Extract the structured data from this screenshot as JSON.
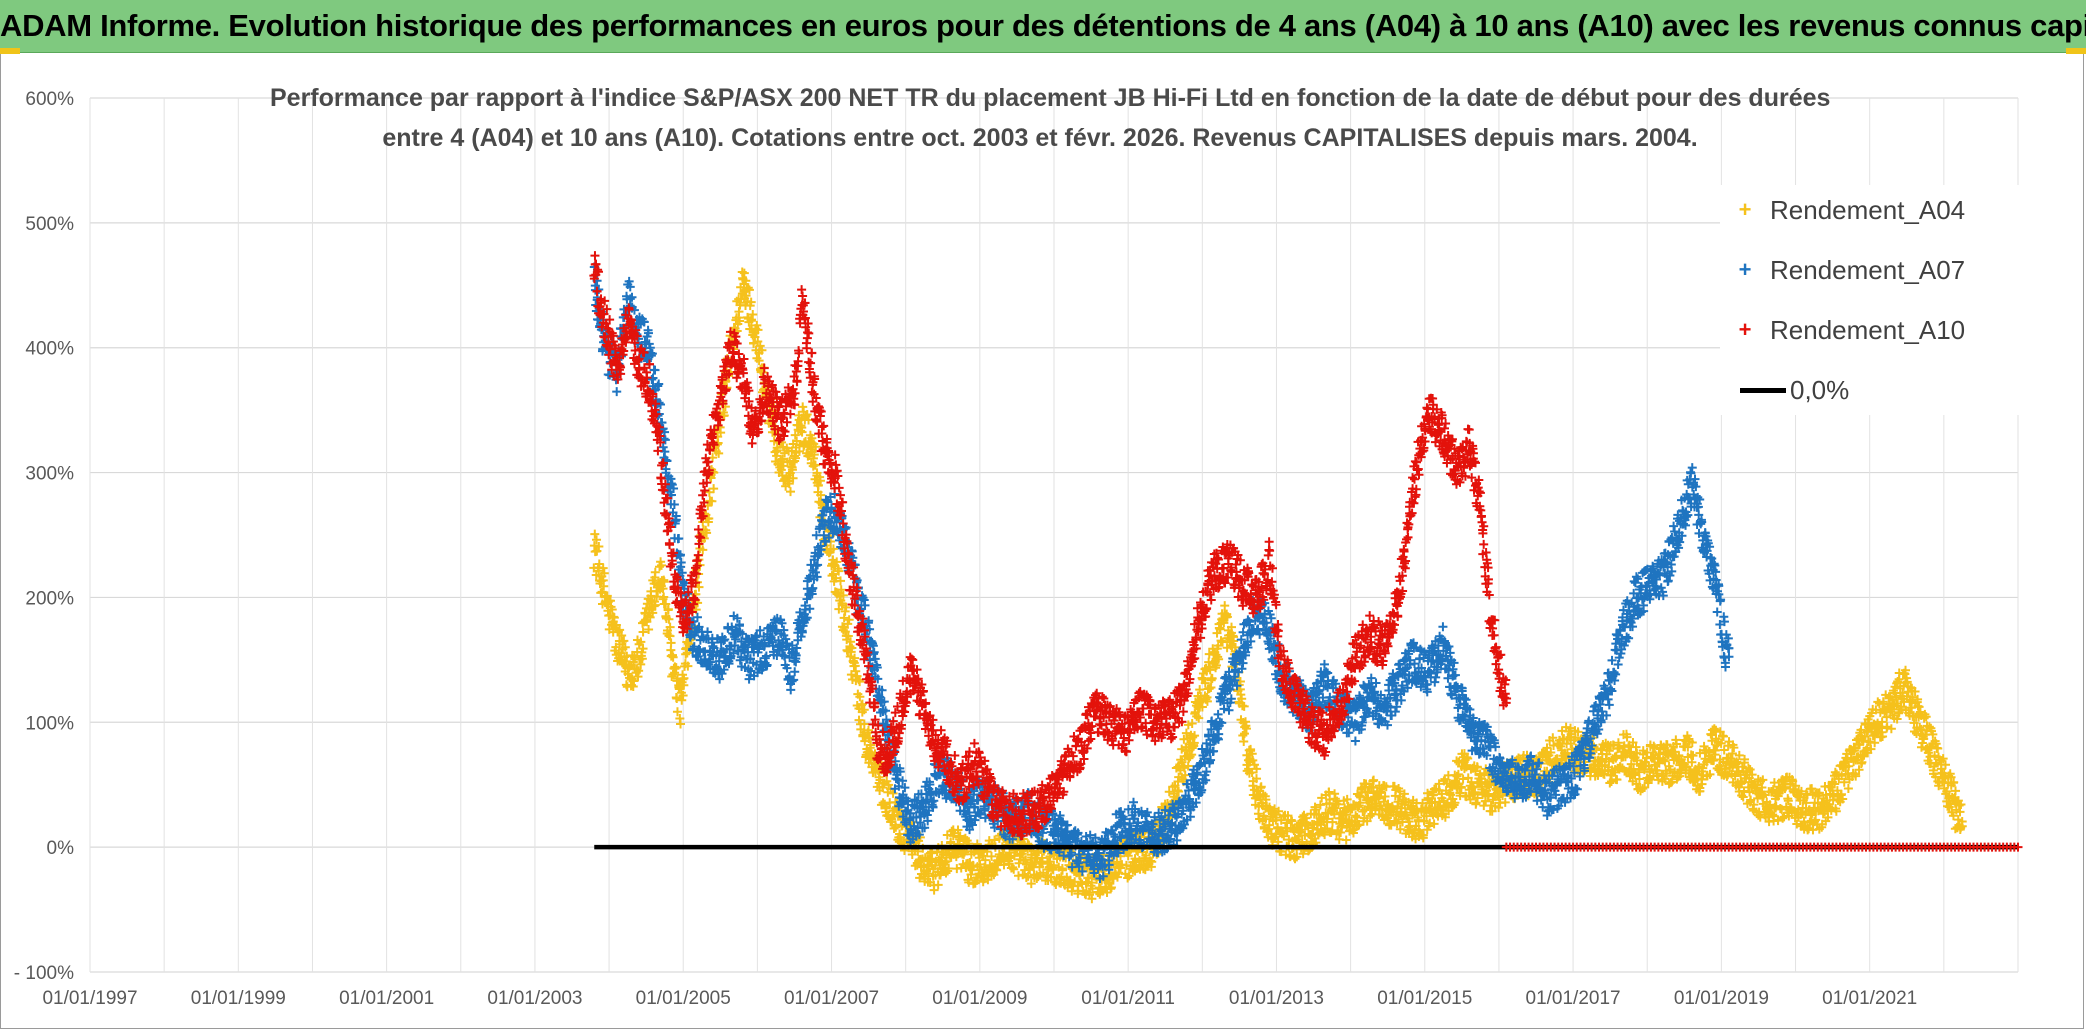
{
  "page": {
    "banner": "ADAM Informe. Evolution historique des performances en euros pour des détentions de 4 ans (A04) à 10 ans (A10) avec les revenus connus capitalisés"
  },
  "chart_data": {
    "type": "scatter",
    "title_lines": [
      "Performance par rapport à l'indice S&P/ASX 200 NET TR  du placement JB Hi-Fi Ltd  en fonction de la date de début pour des durées",
      "entre 4 (A04) et 10 ans (A10). Cotations entre oct. 2003 et févr. 2026. Revenus CAPITALISES depuis mars. 2004."
    ],
    "xlabel": "",
    "ylabel": "",
    "x_ticks": [
      "01/01/1997",
      "01/01/1999",
      "01/01/2001",
      "01/01/2003",
      "01/01/2005",
      "01/01/2007",
      "01/01/2009",
      "01/01/2011",
      "01/01/2013",
      "01/01/2015",
      "01/01/2017",
      "01/01/2019",
      "01/01/2021"
    ],
    "y_ticks": [
      "- 100%",
      "0%",
      "100%",
      "200%",
      "300%",
      "400%",
      "500%",
      "600%"
    ],
    "xlim": [
      1997.0,
      2023.0
    ],
    "ylim": [
      -100,
      600
    ],
    "grid": true,
    "legend_position": "top-right",
    "series": [
      {
        "name": "Rendement_A04",
        "color": "#f5c11c",
        "marker": "+",
        "x_start": 2003.8,
        "x_end": 2022.25,
        "points": [
          [
            2003.8,
            240
          ],
          [
            2003.95,
            200
          ],
          [
            2004.1,
            165
          ],
          [
            2004.25,
            140
          ],
          [
            2004.4,
            150
          ],
          [
            2004.55,
            190
          ],
          [
            2004.7,
            220
          ],
          [
            2004.85,
            150
          ],
          [
            2004.95,
            110
          ],
          [
            2005.1,
            170
          ],
          [
            2005.3,
            260
          ],
          [
            2005.5,
            340
          ],
          [
            2005.65,
            400
          ],
          [
            2005.8,
            450
          ],
          [
            2005.95,
            420
          ],
          [
            2006.1,
            370
          ],
          [
            2006.3,
            310
          ],
          [
            2006.45,
            300
          ],
          [
            2006.6,
            340
          ],
          [
            2006.75,
            320
          ],
          [
            2006.9,
            260
          ],
          [
            2007.05,
            220
          ],
          [
            2007.25,
            160
          ],
          [
            2007.45,
            90
          ],
          [
            2007.6,
            60
          ],
          [
            2007.75,
            40
          ],
          [
            2007.9,
            20
          ],
          [
            2008.05,
            10
          ],
          [
            2008.2,
            -10
          ],
          [
            2008.35,
            -20
          ],
          [
            2008.5,
            -10
          ],
          [
            2008.7,
            0
          ],
          [
            2008.9,
            -15
          ],
          [
            2009.1,
            -10
          ],
          [
            2009.3,
            0
          ],
          [
            2009.5,
            -5
          ],
          [
            2009.7,
            -15
          ],
          [
            2009.9,
            -10
          ],
          [
            2010.1,
            -15
          ],
          [
            2010.3,
            -20
          ],
          [
            2010.5,
            -25
          ],
          [
            2010.7,
            -20
          ],
          [
            2010.9,
            -10
          ],
          [
            2011.1,
            -5
          ],
          [
            2011.3,
            0
          ],
          [
            2011.5,
            20
          ],
          [
            2011.7,
            60
          ],
          [
            2011.9,
            100
          ],
          [
            2012.1,
            140
          ],
          [
            2012.3,
            180
          ],
          [
            2012.45,
            150
          ],
          [
            2012.6,
            80
          ],
          [
            2012.75,
            40
          ],
          [
            2012.9,
            20
          ],
          [
            2013.1,
            10
          ],
          [
            2013.3,
            5
          ],
          [
            2013.5,
            15
          ],
          [
            2013.7,
            30
          ],
          [
            2013.9,
            20
          ],
          [
            2014.1,
            30
          ],
          [
            2014.3,
            40
          ],
          [
            2014.5,
            35
          ],
          [
            2014.7,
            30
          ],
          [
            2014.9,
            20
          ],
          [
            2015.1,
            30
          ],
          [
            2015.3,
            40
          ],
          [
            2015.5,
            60
          ],
          [
            2015.7,
            50
          ],
          [
            2015.9,
            45
          ],
          [
            2016.1,
            50
          ],
          [
            2016.3,
            60
          ],
          [
            2016.5,
            55
          ],
          [
            2016.7,
            70
          ],
          [
            2016.9,
            80
          ],
          [
            2017.1,
            75
          ],
          [
            2017.3,
            70
          ],
          [
            2017.5,
            65
          ],
          [
            2017.7,
            75
          ],
          [
            2017.9,
            60
          ],
          [
            2018.1,
            70
          ],
          [
            2018.3,
            65
          ],
          [
            2018.5,
            75
          ],
          [
            2018.7,
            60
          ],
          [
            2018.9,
            80
          ],
          [
            2019.1,
            70
          ],
          [
            2019.3,
            55
          ],
          [
            2019.5,
            40
          ],
          [
            2019.7,
            35
          ],
          [
            2019.9,
            40
          ],
          [
            2020.1,
            30
          ],
          [
            2020.3,
            30
          ],
          [
            2020.5,
            40
          ],
          [
            2020.7,
            60
          ],
          [
            2020.9,
            80
          ],
          [
            2021.1,
            100
          ],
          [
            2021.3,
            110
          ],
          [
            2021.45,
            130
          ],
          [
            2021.6,
            110
          ],
          [
            2021.75,
            90
          ],
          [
            2021.9,
            70
          ],
          [
            2022.05,
            50
          ],
          [
            2022.2,
            25
          ]
        ]
      },
      {
        "name": "Rendement_A07",
        "color": "#1f74c0",
        "marker": "+",
        "x_start": 2003.8,
        "x_end": 2019.1,
        "points": [
          [
            2003.8,
            450
          ],
          [
            2003.95,
            400
          ],
          [
            2004.1,
            380
          ],
          [
            2004.25,
            440
          ],
          [
            2004.4,
            410
          ],
          [
            2004.55,
            400
          ],
          [
            2004.7,
            340
          ],
          [
            2004.85,
            280
          ],
          [
            2005.0,
            200
          ],
          [
            2005.15,
            170
          ],
          [
            2005.3,
            160
          ],
          [
            2005.5,
            150
          ],
          [
            2005.7,
            170
          ],
          [
            2005.9,
            150
          ],
          [
            2006.1,
            160
          ],
          [
            2006.3,
            170
          ],
          [
            2006.45,
            140
          ],
          [
            2006.6,
            180
          ],
          [
            2006.75,
            220
          ],
          [
            2006.9,
            260
          ],
          [
            2007.05,
            270
          ],
          [
            2007.2,
            240
          ],
          [
            2007.4,
            190
          ],
          [
            2007.6,
            140
          ],
          [
            2007.75,
            90
          ],
          [
            2007.9,
            50
          ],
          [
            2008.05,
            20
          ],
          [
            2008.25,
            30
          ],
          [
            2008.45,
            60
          ],
          [
            2008.65,
            50
          ],
          [
            2008.85,
            30
          ],
          [
            2009.05,
            40
          ],
          [
            2009.25,
            30
          ],
          [
            2009.45,
            20
          ],
          [
            2009.65,
            30
          ],
          [
            2009.85,
            15
          ],
          [
            2010.05,
            10
          ],
          [
            2010.25,
            0
          ],
          [
            2010.45,
            -5
          ],
          [
            2010.65,
            -10
          ],
          [
            2010.85,
            10
          ],
          [
            2011.05,
            20
          ],
          [
            2011.25,
            15
          ],
          [
            2011.45,
            10
          ],
          [
            2011.65,
            20
          ],
          [
            2011.85,
            40
          ],
          [
            2012.05,
            70
          ],
          [
            2012.25,
            110
          ],
          [
            2012.45,
            140
          ],
          [
            2012.65,
            180
          ],
          [
            2012.85,
            190
          ],
          [
            2013.05,
            140
          ],
          [
            2013.25,
            120
          ],
          [
            2013.45,
            110
          ],
          [
            2013.65,
            130
          ],
          [
            2013.85,
            110
          ],
          [
            2014.05,
            100
          ],
          [
            2014.25,
            120
          ],
          [
            2014.45,
            110
          ],
          [
            2014.65,
            130
          ],
          [
            2014.85,
            150
          ],
          [
            2015.05,
            140
          ],
          [
            2015.25,
            160
          ],
          [
            2015.45,
            120
          ],
          [
            2015.65,
            90
          ],
          [
            2015.85,
            80
          ],
          [
            2016.05,
            60
          ],
          [
            2016.25,
            50
          ],
          [
            2016.45,
            60
          ],
          [
            2016.65,
            40
          ],
          [
            2016.85,
            50
          ],
          [
            2017.05,
            60
          ],
          [
            2017.25,
            90
          ],
          [
            2017.45,
            120
          ],
          [
            2017.65,
            170
          ],
          [
            2017.85,
            200
          ],
          [
            2018.05,
            210
          ],
          [
            2018.25,
            220
          ],
          [
            2018.45,
            260
          ],
          [
            2018.6,
            290
          ],
          [
            2018.75,
            250
          ],
          [
            2018.9,
            220
          ],
          [
            2019.05,
            160
          ]
        ]
      },
      {
        "name": "Rendement_A10",
        "color": "#e3120b",
        "marker": "+",
        "x_start": 2003.8,
        "x_end": 2016.1,
        "points": [
          [
            2003.8,
            460
          ],
          [
            2003.95,
            420
          ],
          [
            2004.1,
            380
          ],
          [
            2004.25,
            420
          ],
          [
            2004.4,
            390
          ],
          [
            2004.55,
            370
          ],
          [
            2004.7,
            310
          ],
          [
            2004.85,
            230
          ],
          [
            2005.0,
            180
          ],
          [
            2005.15,
            210
          ],
          [
            2005.3,
            300
          ],
          [
            2005.5,
            360
          ],
          [
            2005.65,
            400
          ],
          [
            2005.8,
            380
          ],
          [
            2005.95,
            330
          ],
          [
            2006.1,
            370
          ],
          [
            2006.3,
            340
          ],
          [
            2006.5,
            360
          ],
          [
            2006.6,
            440
          ],
          [
            2006.75,
            370
          ],
          [
            2006.9,
            320
          ],
          [
            2007.05,
            300
          ],
          [
            2007.25,
            220
          ],
          [
            2007.45,
            160
          ],
          [
            2007.6,
            90
          ],
          [
            2007.75,
            70
          ],
          [
            2007.9,
            100
          ],
          [
            2008.05,
            140
          ],
          [
            2008.2,
            120
          ],
          [
            2008.35,
            90
          ],
          [
            2008.55,
            70
          ],
          [
            2008.75,
            50
          ],
          [
            2008.95,
            70
          ],
          [
            2009.15,
            40
          ],
          [
            2009.35,
            30
          ],
          [
            2009.55,
            25
          ],
          [
            2009.75,
            30
          ],
          [
            2009.95,
            40
          ],
          [
            2010.15,
            60
          ],
          [
            2010.35,
            80
          ],
          [
            2010.55,
            110
          ],
          [
            2010.75,
            100
          ],
          [
            2010.95,
            90
          ],
          [
            2011.15,
            110
          ],
          [
            2011.35,
            100
          ],
          [
            2011.55,
            100
          ],
          [
            2011.75,
            120
          ],
          [
            2011.95,
            180
          ],
          [
            2012.15,
            220
          ],
          [
            2012.35,
            230
          ],
          [
            2012.55,
            210
          ],
          [
            2012.75,
            200
          ],
          [
            2012.9,
            230
          ],
          [
            2013.05,
            150
          ],
          [
            2013.25,
            120
          ],
          [
            2013.45,
            100
          ],
          [
            2013.65,
            90
          ],
          [
            2013.85,
            110
          ],
          [
            2014.05,
            150
          ],
          [
            2014.25,
            170
          ],
          [
            2014.45,
            160
          ],
          [
            2014.65,
            200
          ],
          [
            2014.85,
            290
          ],
          [
            2015.05,
            350
          ],
          [
            2015.25,
            330
          ],
          [
            2015.45,
            300
          ],
          [
            2015.6,
            320
          ],
          [
            2015.75,
            270
          ],
          [
            2015.9,
            180
          ],
          [
            2016.05,
            130
          ]
        ]
      },
      {
        "name": "0,0%",
        "color": "#000000",
        "type": "line",
        "x_start": 2003.8,
        "x_end": 2023.0,
        "value": 0,
        "overlay_red_from": 2016.1
      }
    ]
  }
}
